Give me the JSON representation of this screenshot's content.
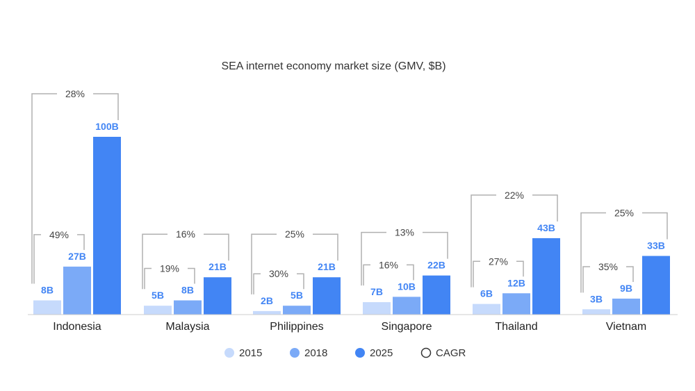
{
  "chart_data": {
    "type": "bar",
    "title": "SEA internet economy market size (GMV, $B)",
    "xlabel": "",
    "ylabel": "",
    "ylim": [
      0,
      100
    ],
    "grid": false,
    "legend_position": "bottom",
    "categories": [
      "Indonesia",
      "Malaysia",
      "Philippines",
      "Singapore",
      "Thailand",
      "Vietnam"
    ],
    "series": [
      {
        "name": "2015",
        "color": "#c6dafc",
        "values": [
          8,
          5,
          2,
          7,
          6,
          3
        ],
        "labels": [
          "8B",
          "5B",
          "2B",
          "7B",
          "6B",
          "3B"
        ]
      },
      {
        "name": "2018",
        "color": "#7baaf7",
        "values": [
          27,
          8,
          5,
          10,
          12,
          9
        ],
        "labels": [
          "27B",
          "8B",
          "5B",
          "10B",
          "12B",
          "9B"
        ]
      },
      {
        "name": "2025",
        "color": "#4285f4",
        "values": [
          100,
          21,
          21,
          22,
          43,
          33
        ],
        "labels": [
          "100B",
          "21B",
          "21B",
          "22B",
          "43B",
          "33B"
        ]
      }
    ],
    "cagr_legend": "CAGR",
    "cagr_2015_2018": [
      "49%",
      "19%",
      "30%",
      "16%",
      "27%",
      "35%"
    ],
    "cagr_2015_2025": [
      "28%",
      "16%",
      "25%",
      "13%",
      "22%",
      "25%"
    ],
    "label_color": "#4285f4",
    "bracket_color": "#b0b0b0"
  }
}
